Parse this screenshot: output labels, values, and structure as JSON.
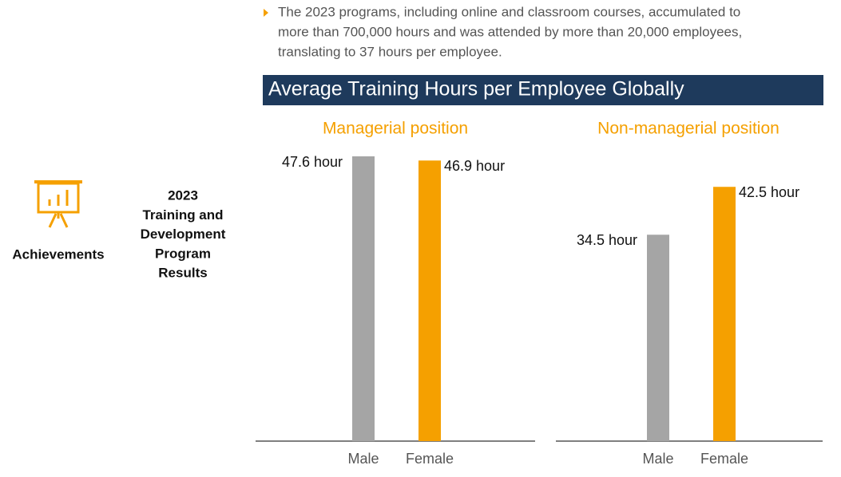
{
  "sidebar": {
    "section": "Achievements",
    "program_title": [
      "2023",
      "Training and",
      "Development",
      "Program",
      "Results"
    ]
  },
  "bullet": {
    "lines": [
      "The 2023 programs, including online and classroom courses, accumulated to",
      "more than 700,000 hours and was attended by more than 20,000 employees,",
      "translating to 37 hours per employee."
    ]
  },
  "banner": {
    "title": "Average Training Hours per Employee Globally"
  },
  "chart_data": [
    {
      "type": "bar",
      "title": "Managerial position",
      "categories": [
        "Male",
        "Female"
      ],
      "values": [
        47.6,
        46.9
      ],
      "value_labels": [
        "47.6 hour",
        "46.9 hour"
      ],
      "colors": [
        "#a5a5a5",
        "#f5a000"
      ]
    },
    {
      "type": "bar",
      "title": "Non-managerial position",
      "categories": [
        "Male",
        "Female"
      ],
      "values": [
        34.5,
        42.5
      ],
      "value_labels": [
        "34.5 hour",
        "42.5 hour"
      ],
      "colors": [
        "#a5a5a5",
        "#f5a000"
      ]
    }
  ]
}
